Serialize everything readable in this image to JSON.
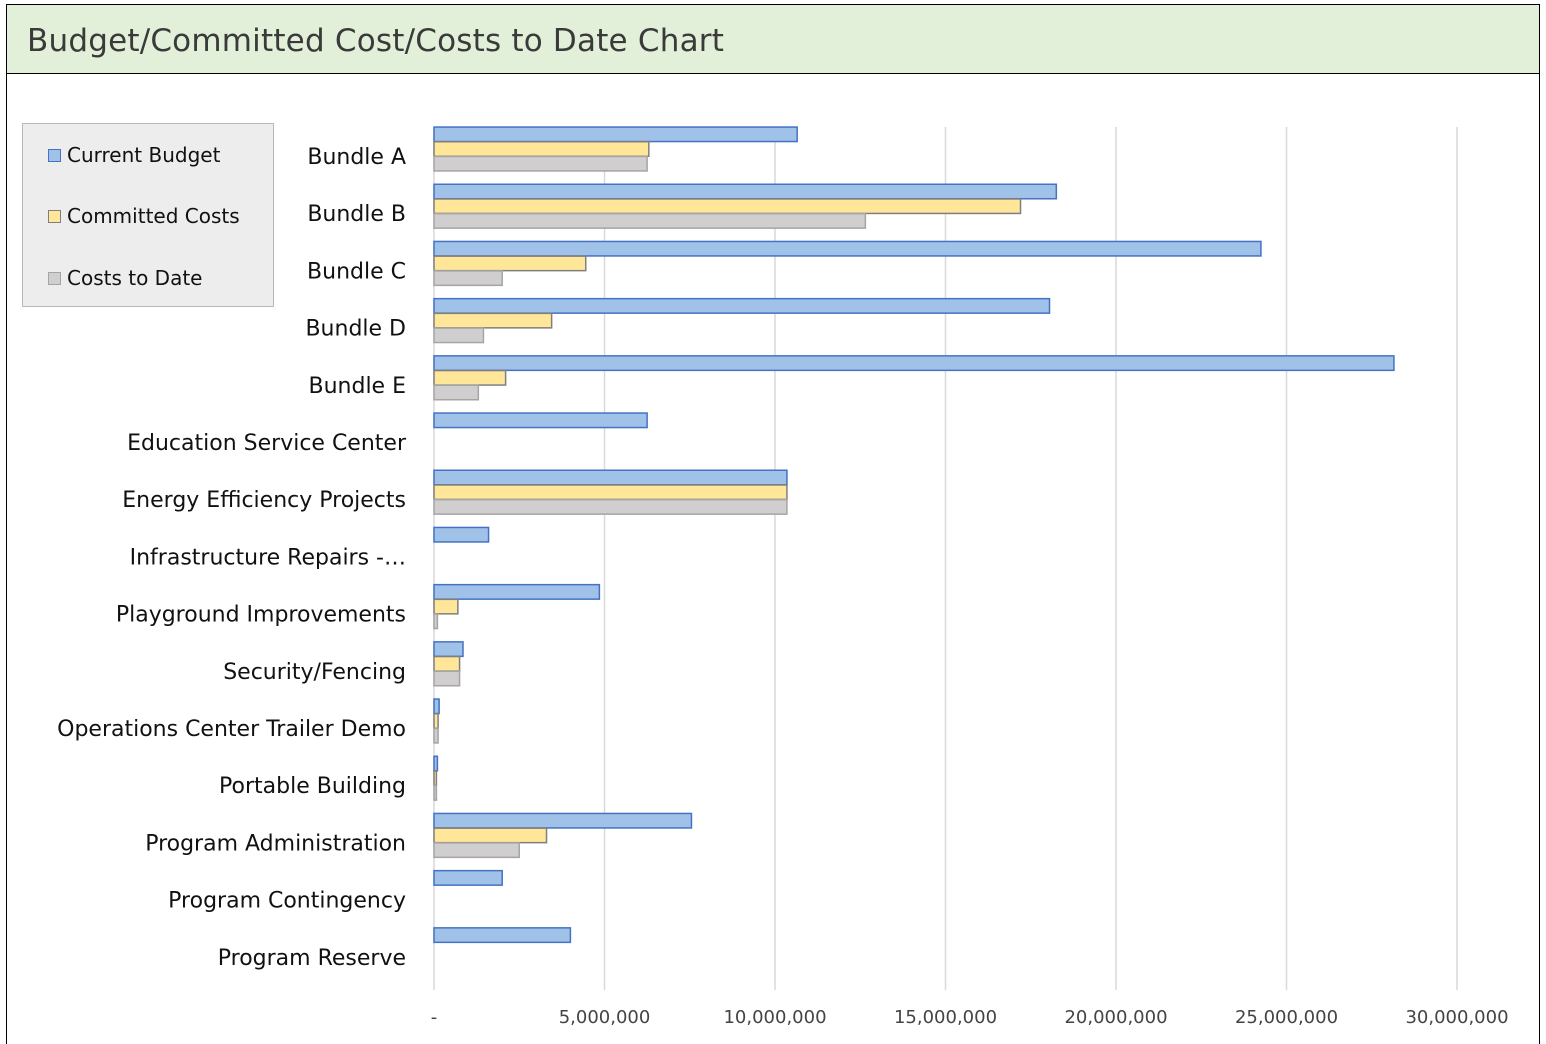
{
  "window": {
    "title": "Budget/Committed Cost/Costs to Date Chart"
  },
  "colors": {
    "title_bar_bg": "#e2efd9",
    "current_budget_fill": "#a0c1e8",
    "current_budget_stroke": "#4472c4",
    "committed_fill": "#ffe699",
    "committed_stroke": "#7f7f7f",
    "to_date_fill": "#d0cece",
    "to_date_stroke": "#a5a5a5",
    "gridline": "#d9d9d9"
  },
  "legend": {
    "placement": "top-left",
    "items": [
      {
        "label": "Current Budget",
        "fill": "#a0c1e8",
        "stroke": "#4472c4"
      },
      {
        "label": "Committed Costs",
        "fill": "#ffe699",
        "stroke": "#7f7f7f"
      },
      {
        "label": "Costs to Date",
        "fill": "#d0cece",
        "stroke": "#a5a5a5"
      }
    ]
  },
  "chart_data": {
    "type": "bar",
    "orientation": "horizontal",
    "title": "Budget/Committed Cost/Costs to Date Chart",
    "xlabel": "",
    "ylabel": "",
    "xlim": [
      0,
      32500000
    ],
    "grid": true,
    "x_ticks": [
      0,
      5000000,
      10000000,
      15000000,
      20000000,
      25000000,
      30000000
    ],
    "x_tick_labels": [
      "-",
      "5,000,000",
      "10,000,000",
      "15,000,000",
      "20,000,000",
      "25,000,000",
      "30,000,000"
    ],
    "categories": [
      "Bundle A",
      "Bundle B",
      "Bundle C",
      "Bundle D",
      "Bundle E",
      "Education Service Center",
      "Energy Efficiency Projects",
      "Infrastructure Repairs -…",
      "Playground Improvements",
      "Security/Fencing",
      "Operations Center Trailer Demo",
      "Portable Building",
      "Program Administration",
      "Program Contingency",
      "Program Reserve"
    ],
    "series": [
      {
        "name": "Current Budget",
        "values": [
          10650000,
          18250000,
          24250000,
          18050000,
          28150000,
          6250000,
          10350000,
          1600000,
          4850000,
          850000,
          150000,
          100000,
          7550000,
          2000000,
          4000000
        ]
      },
      {
        "name": "Committed Costs",
        "values": [
          6300000,
          17200000,
          4450000,
          3450000,
          2100000,
          0,
          10350000,
          0,
          700000,
          750000,
          120000,
          70000,
          3300000,
          0,
          0
        ]
      },
      {
        "name": "Costs to Date",
        "values": [
          6250000,
          12650000,
          2000000,
          1450000,
          1300000,
          0,
          10350000,
          0,
          100000,
          750000,
          120000,
          70000,
          2500000,
          0,
          0
        ]
      }
    ]
  }
}
